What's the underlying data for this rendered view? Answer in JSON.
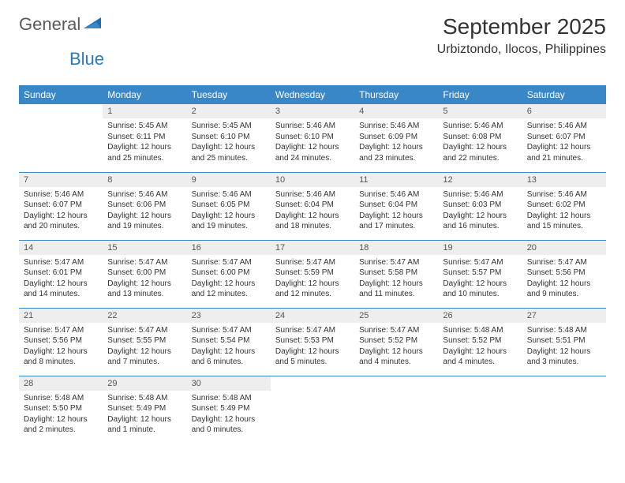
{
  "logo": {
    "part1": "General",
    "part2": "Blue"
  },
  "header": {
    "title": "September 2025",
    "location": "Urbiztondo, Ilocos, Philippines"
  },
  "colors": {
    "header_bg": "#3a87c7",
    "header_text": "#ffffff",
    "daynum_bg": "#eeeeee",
    "border": "#3a87c7",
    "logo_gray": "#5a5a5a",
    "logo_blue": "#2a7ab8",
    "text": "#333333",
    "background": "#ffffff"
  },
  "daynames": [
    "Sunday",
    "Monday",
    "Tuesday",
    "Wednesday",
    "Thursday",
    "Friday",
    "Saturday"
  ],
  "weeks": [
    [
      null,
      {
        "n": "1",
        "sr": "5:45 AM",
        "ss": "6:11 PM",
        "dl": "12 hours and 25 minutes."
      },
      {
        "n": "2",
        "sr": "5:45 AM",
        "ss": "6:10 PM",
        "dl": "12 hours and 25 minutes."
      },
      {
        "n": "3",
        "sr": "5:46 AM",
        "ss": "6:10 PM",
        "dl": "12 hours and 24 minutes."
      },
      {
        "n": "4",
        "sr": "5:46 AM",
        "ss": "6:09 PM",
        "dl": "12 hours and 23 minutes."
      },
      {
        "n": "5",
        "sr": "5:46 AM",
        "ss": "6:08 PM",
        "dl": "12 hours and 22 minutes."
      },
      {
        "n": "6",
        "sr": "5:46 AM",
        "ss": "6:07 PM",
        "dl": "12 hours and 21 minutes."
      }
    ],
    [
      {
        "n": "7",
        "sr": "5:46 AM",
        "ss": "6:07 PM",
        "dl": "12 hours and 20 minutes."
      },
      {
        "n": "8",
        "sr": "5:46 AM",
        "ss": "6:06 PM",
        "dl": "12 hours and 19 minutes."
      },
      {
        "n": "9",
        "sr": "5:46 AM",
        "ss": "6:05 PM",
        "dl": "12 hours and 19 minutes."
      },
      {
        "n": "10",
        "sr": "5:46 AM",
        "ss": "6:04 PM",
        "dl": "12 hours and 18 minutes."
      },
      {
        "n": "11",
        "sr": "5:46 AM",
        "ss": "6:04 PM",
        "dl": "12 hours and 17 minutes."
      },
      {
        "n": "12",
        "sr": "5:46 AM",
        "ss": "6:03 PM",
        "dl": "12 hours and 16 minutes."
      },
      {
        "n": "13",
        "sr": "5:46 AM",
        "ss": "6:02 PM",
        "dl": "12 hours and 15 minutes."
      }
    ],
    [
      {
        "n": "14",
        "sr": "5:47 AM",
        "ss": "6:01 PM",
        "dl": "12 hours and 14 minutes."
      },
      {
        "n": "15",
        "sr": "5:47 AM",
        "ss": "6:00 PM",
        "dl": "12 hours and 13 minutes."
      },
      {
        "n": "16",
        "sr": "5:47 AM",
        "ss": "6:00 PM",
        "dl": "12 hours and 12 minutes."
      },
      {
        "n": "17",
        "sr": "5:47 AM",
        "ss": "5:59 PM",
        "dl": "12 hours and 12 minutes."
      },
      {
        "n": "18",
        "sr": "5:47 AM",
        "ss": "5:58 PM",
        "dl": "12 hours and 11 minutes."
      },
      {
        "n": "19",
        "sr": "5:47 AM",
        "ss": "5:57 PM",
        "dl": "12 hours and 10 minutes."
      },
      {
        "n": "20",
        "sr": "5:47 AM",
        "ss": "5:56 PM",
        "dl": "12 hours and 9 minutes."
      }
    ],
    [
      {
        "n": "21",
        "sr": "5:47 AM",
        "ss": "5:56 PM",
        "dl": "12 hours and 8 minutes."
      },
      {
        "n": "22",
        "sr": "5:47 AM",
        "ss": "5:55 PM",
        "dl": "12 hours and 7 minutes."
      },
      {
        "n": "23",
        "sr": "5:47 AM",
        "ss": "5:54 PM",
        "dl": "12 hours and 6 minutes."
      },
      {
        "n": "24",
        "sr": "5:47 AM",
        "ss": "5:53 PM",
        "dl": "12 hours and 5 minutes."
      },
      {
        "n": "25",
        "sr": "5:47 AM",
        "ss": "5:52 PM",
        "dl": "12 hours and 4 minutes."
      },
      {
        "n": "26",
        "sr": "5:48 AM",
        "ss": "5:52 PM",
        "dl": "12 hours and 4 minutes."
      },
      {
        "n": "27",
        "sr": "5:48 AM",
        "ss": "5:51 PM",
        "dl": "12 hours and 3 minutes."
      }
    ],
    [
      {
        "n": "28",
        "sr": "5:48 AM",
        "ss": "5:50 PM",
        "dl": "12 hours and 2 minutes."
      },
      {
        "n": "29",
        "sr": "5:48 AM",
        "ss": "5:49 PM",
        "dl": "12 hours and 1 minute."
      },
      {
        "n": "30",
        "sr": "5:48 AM",
        "ss": "5:49 PM",
        "dl": "12 hours and 0 minutes."
      },
      null,
      null,
      null,
      null
    ]
  ],
  "labels": {
    "sunrise": "Sunrise:",
    "sunset": "Sunset:",
    "daylight": "Daylight:"
  }
}
